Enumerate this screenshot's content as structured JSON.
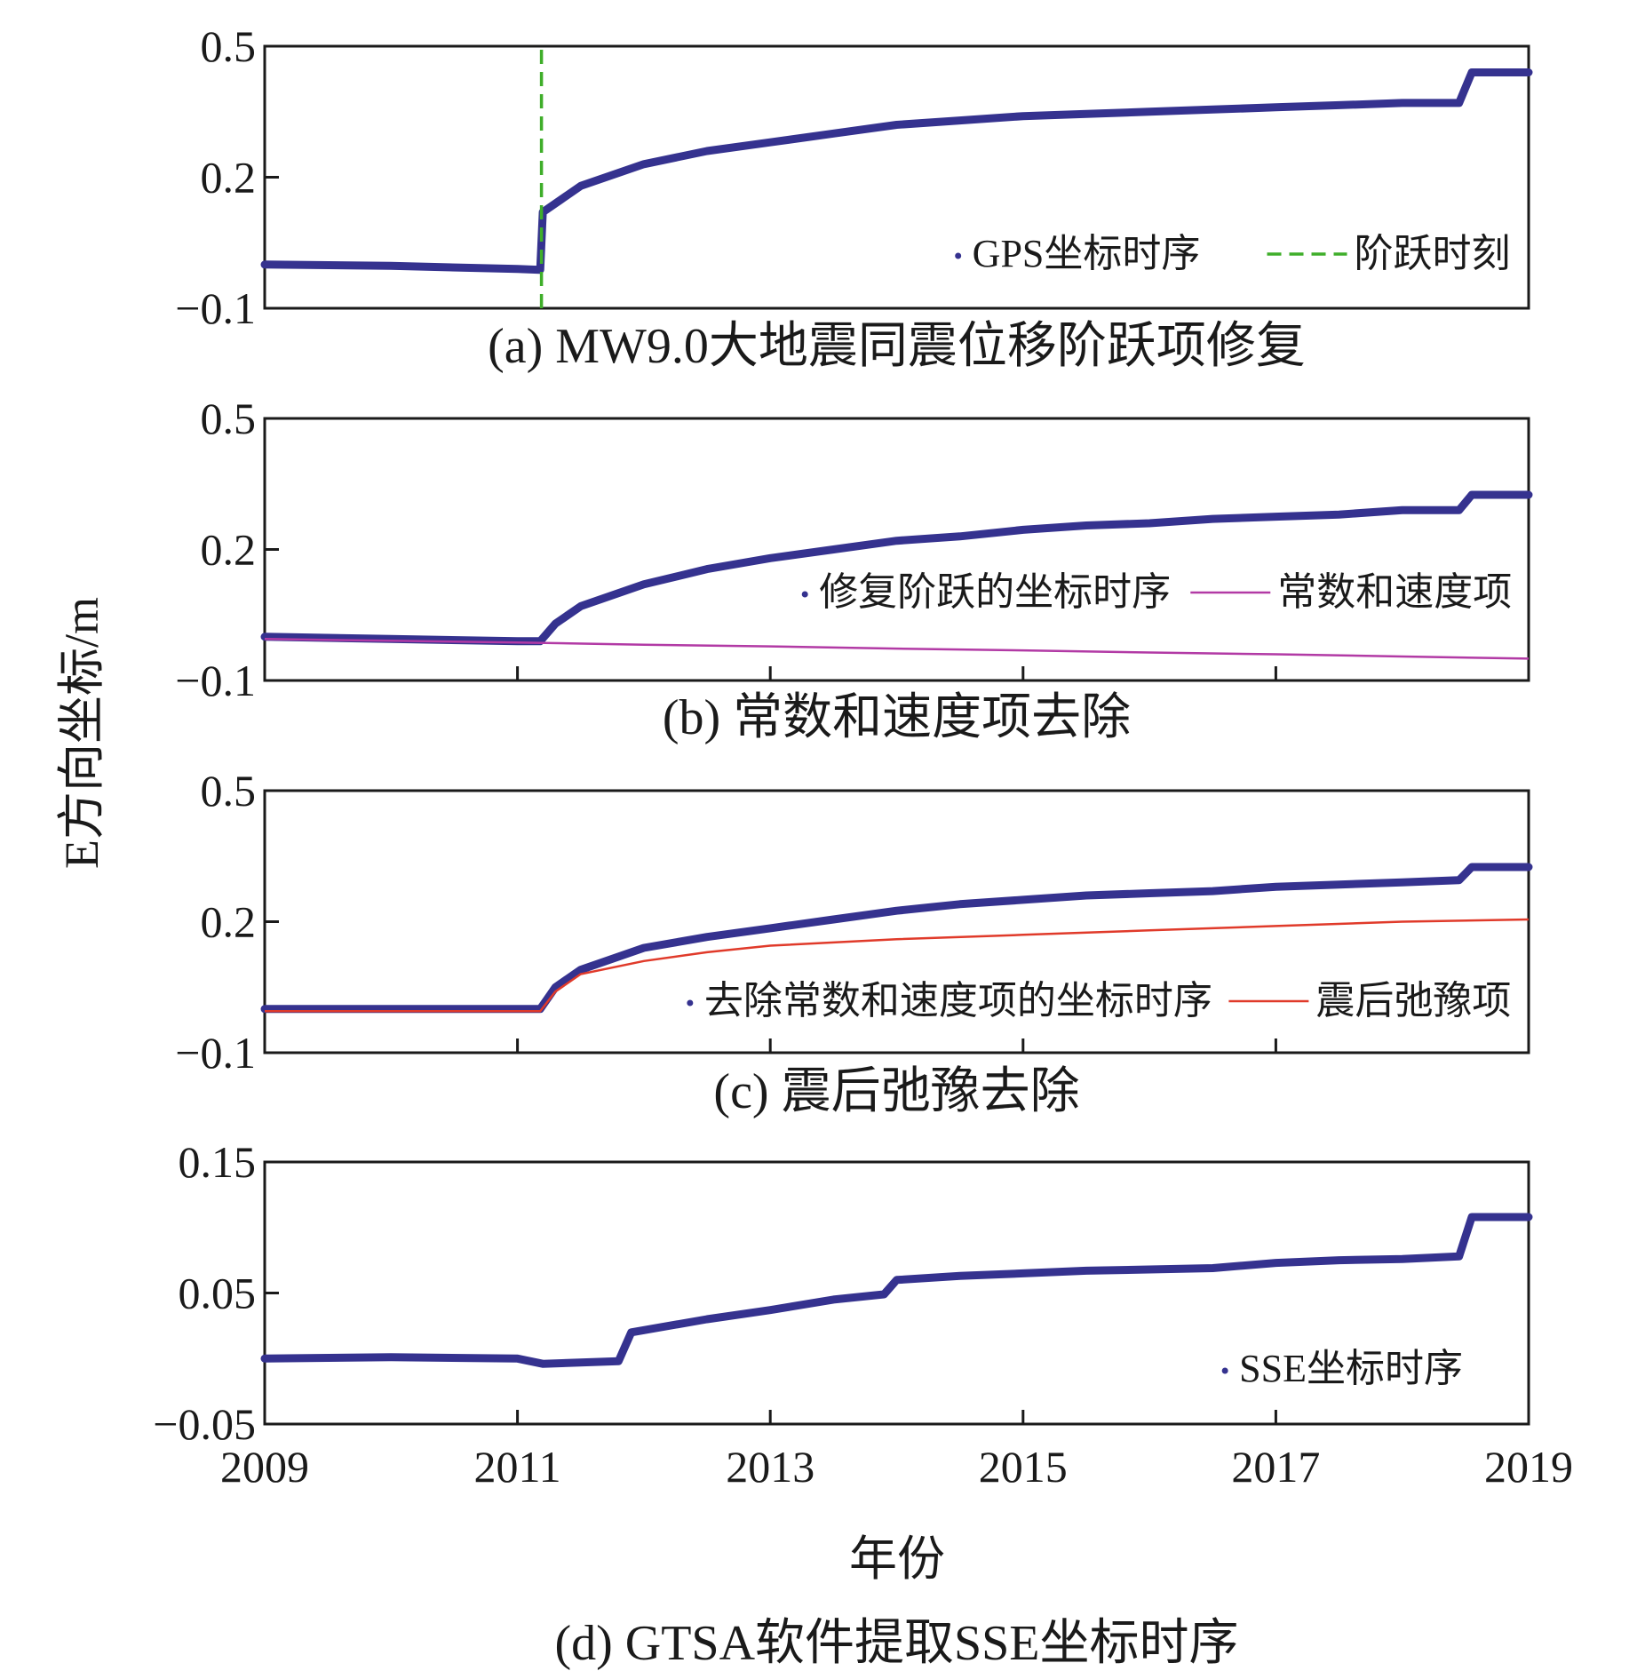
{
  "colors": {
    "gps_series": "#35328f",
    "step_line": "#3fae2a",
    "const_velocity": "#b23aa5",
    "relaxation": "#e03a2a",
    "axis": "#1a1a1a"
  },
  "figure": {
    "ylabel": "E方向坐标/m",
    "xlabel": "年份"
  },
  "chart_data": [
    {
      "id": "a",
      "type": "line",
      "caption": "(a) MW9.0大地震同震位移阶跃项修复",
      "xlim": [
        2009,
        2019
      ],
      "ylim": [
        -0.1,
        0.5
      ],
      "yticks": [
        -0.1,
        0.2,
        0.5
      ],
      "ytick_labels": [
        "−0.1",
        "0.2",
        "0.5"
      ],
      "xticks": [],
      "xtick_labels": [],
      "legend_position": "bottom-right",
      "series": [
        {
          "name": "GPS坐标时序",
          "style": "scatter-dots",
          "color": "#35328f",
          "x": [
            2009.0,
            2010.0,
            2011.0,
            2011.18,
            2011.2,
            2011.5,
            2012.0,
            2012.5,
            2013.0,
            2013.5,
            2014.0,
            2014.5,
            2015.0,
            2015.5,
            2016.0,
            2016.5,
            2017.0,
            2017.5,
            2018.0,
            2018.45,
            2018.55,
            2019.0
          ],
          "y": [
            0.0,
            -0.003,
            -0.01,
            -0.012,
            0.12,
            0.18,
            0.23,
            0.26,
            0.28,
            0.3,
            0.32,
            0.33,
            0.34,
            0.345,
            0.35,
            0.355,
            0.36,
            0.365,
            0.37,
            0.37,
            0.44,
            0.44
          ]
        },
        {
          "name": "阶跃时刻",
          "style": "dashed-vline",
          "color": "#3fae2a",
          "x": [
            2011.19,
            2011.19
          ],
          "y": [
            -0.1,
            0.5
          ]
        }
      ]
    },
    {
      "id": "b",
      "type": "line",
      "caption": "(b) 常数和速度项去除",
      "xlim": [
        2009,
        2019
      ],
      "ylim": [
        -0.1,
        0.5
      ],
      "yticks": [
        -0.1,
        0.2,
        0.5
      ],
      "ytick_labels": [
        "−0.1",
        "0.2",
        "0.5"
      ],
      "xticks": [
        2011,
        2013,
        2015,
        2017
      ],
      "xtick_labels": [],
      "legend_position": "middle-right",
      "series": [
        {
          "name": "修复阶跃的坐标时序",
          "style": "scatter-dots",
          "color": "#35328f",
          "x": [
            2009.0,
            2010.0,
            2011.0,
            2011.18,
            2011.3,
            2011.5,
            2012.0,
            2012.5,
            2013.0,
            2013.5,
            2014.0,
            2014.5,
            2015.0,
            2015.5,
            2016.0,
            2016.5,
            2017.0,
            2017.5,
            2018.0,
            2018.45,
            2018.55,
            2019.0
          ],
          "y": [
            0.0,
            -0.005,
            -0.01,
            -0.01,
            0.03,
            0.07,
            0.12,
            0.155,
            0.18,
            0.2,
            0.22,
            0.23,
            0.245,
            0.255,
            0.26,
            0.27,
            0.275,
            0.28,
            0.29,
            0.29,
            0.325,
            0.325
          ]
        },
        {
          "name": "常数和速度项",
          "style": "line",
          "color": "#b23aa5",
          "x": [
            2009.0,
            2010.0,
            2011.0,
            2012.0,
            2013.0,
            2014.0,
            2015.0,
            2016.0,
            2017.0,
            2018.0,
            2019.0
          ],
          "y": [
            -0.005,
            -0.009,
            -0.013,
            -0.018,
            -0.022,
            -0.027,
            -0.031,
            -0.036,
            -0.04,
            -0.045,
            -0.05
          ]
        }
      ]
    },
    {
      "id": "c",
      "type": "line",
      "caption": "(c) 震后弛豫去除",
      "xlim": [
        2009,
        2019
      ],
      "ylim": [
        -0.1,
        0.5
      ],
      "yticks": [
        -0.1,
        0.2,
        0.5
      ],
      "ytick_labels": [
        "−0.1",
        "0.2",
        "0.5"
      ],
      "xticks": [
        2011,
        2013,
        2015,
        2017
      ],
      "xtick_labels": [],
      "legend_position": "bottom-right",
      "series": [
        {
          "name": "去除常数和速度项的坐标时序",
          "style": "scatter-dots",
          "color": "#35328f",
          "x": [
            2009.0,
            2010.0,
            2011.0,
            2011.18,
            2011.3,
            2011.5,
            2012.0,
            2012.5,
            2013.0,
            2013.5,
            2014.0,
            2014.5,
            2015.0,
            2015.5,
            2016.0,
            2016.5,
            2017.0,
            2017.5,
            2018.0,
            2018.45,
            2018.55,
            2019.0
          ],
          "y": [
            0.0,
            0.0,
            0.0,
            0.0,
            0.05,
            0.09,
            0.14,
            0.165,
            0.185,
            0.205,
            0.225,
            0.24,
            0.25,
            0.26,
            0.265,
            0.27,
            0.28,
            0.285,
            0.29,
            0.295,
            0.325,
            0.325
          ]
        },
        {
          "name": "震后弛豫项",
          "style": "line",
          "color": "#e03a2a",
          "x": [
            2009.0,
            2011.18,
            2011.3,
            2011.5,
            2012.0,
            2012.5,
            2013.0,
            2014.0,
            2015.0,
            2016.0,
            2017.0,
            2018.0,
            2019.0
          ],
          "y": [
            -0.005,
            -0.005,
            0.04,
            0.08,
            0.11,
            0.13,
            0.145,
            0.16,
            0.17,
            0.18,
            0.19,
            0.2,
            0.205
          ]
        }
      ]
    },
    {
      "id": "d",
      "type": "line",
      "caption": "(d) GTSA软件提取SSE坐标时序",
      "xlim": [
        2009,
        2019
      ],
      "ylim": [
        -0.05,
        0.15
      ],
      "yticks": [
        -0.05,
        0.05,
        0.15
      ],
      "ytick_labels": [
        "−0.05",
        "0.05",
        "0.15"
      ],
      "xticks": [
        2009,
        2011,
        2013,
        2015,
        2017,
        2019
      ],
      "xtick_labels": [
        "2009",
        "2011",
        "2013",
        "2015",
        "2017",
        "2019"
      ],
      "legend_position": "bottom-right",
      "series": [
        {
          "name": "SSE坐标时序",
          "style": "scatter-dots",
          "color": "#35328f",
          "x": [
            2009.0,
            2010.0,
            2011.0,
            2011.2,
            2011.8,
            2011.9,
            2012.5,
            2013.0,
            2013.5,
            2013.9,
            2014.0,
            2014.5,
            2015.0,
            2015.5,
            2016.0,
            2016.5,
            2017.0,
            2017.5,
            2018.0,
            2018.45,
            2018.55,
            2019.0
          ],
          "y": [
            0.0,
            0.001,
            0.0,
            -0.004,
            -0.002,
            0.02,
            0.03,
            0.037,
            0.045,
            0.049,
            0.06,
            0.063,
            0.065,
            0.067,
            0.068,
            0.069,
            0.073,
            0.075,
            0.076,
            0.078,
            0.108,
            0.108
          ]
        }
      ]
    }
  ]
}
